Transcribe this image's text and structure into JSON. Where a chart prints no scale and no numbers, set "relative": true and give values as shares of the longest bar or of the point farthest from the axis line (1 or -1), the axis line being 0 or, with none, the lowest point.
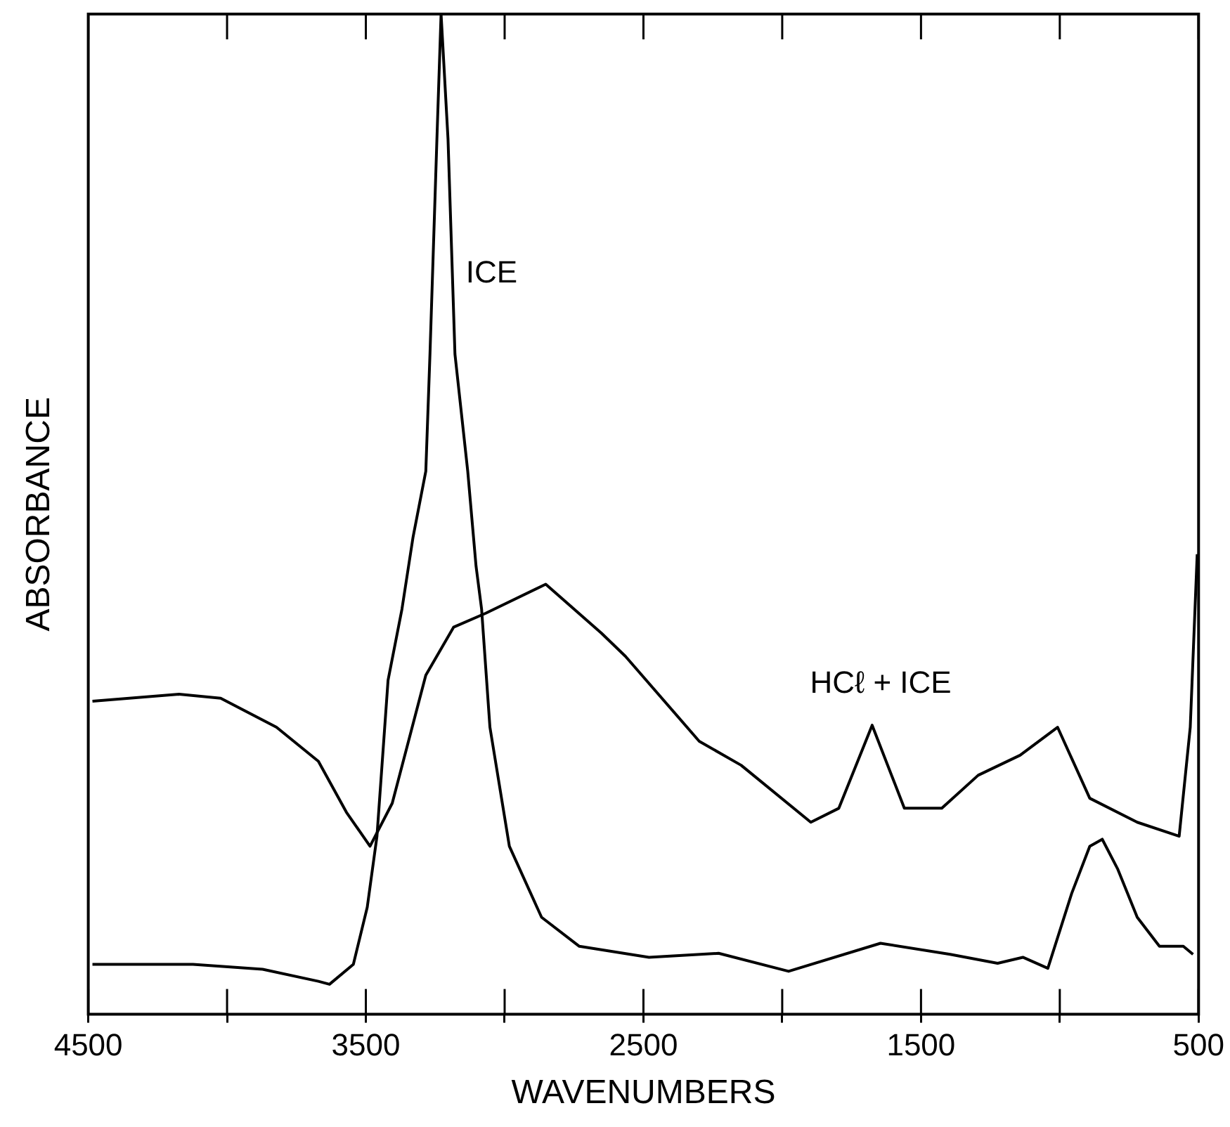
{
  "chart_data": {
    "type": "line",
    "xlabel": "WAVENUMBERS",
    "ylabel": "ABSORBANCE",
    "relative": true,
    "grid": false,
    "legend": false,
    "marker": "none",
    "line_style": "solid",
    "xlim": [
      4500,
      500
    ],
    "xticks": [
      4500,
      {
        "value": 4000,
        "label": null
      },
      3500,
      {
        "value": 3000,
        "label": null
      },
      2500,
      {
        "value": 2000,
        "label": null
      },
      1500,
      {
        "value": 1000,
        "label": null
      },
      500
    ],
    "series": [
      {
        "name": "ICE",
        "color": "#000000",
        "x": [
          4485,
          4123,
          3872,
          3671,
          3631,
          3545,
          3495,
          3460,
          3420,
          3370,
          3330,
          3284,
          3269,
          3244,
          3229,
          3204,
          3179,
          3133,
          3103,
          3083,
          3053,
          2983,
          2867,
          2731,
          2480,
          2229,
          1977,
          1646,
          1395,
          1224,
          1133,
          1043,
          957,
          892,
          847,
          791,
          721,
          641,
          555,
          520
        ],
        "values": [
          0.05,
          0.05,
          0.045,
          0.033,
          0.03,
          0.05,
          0.107,
          0.178,
          0.334,
          0.405,
          0.477,
          0.543,
          0.66,
          0.875,
          1,
          0.875,
          0.66,
          0.543,
          0.448,
          0.405,
          0.287,
          0.168,
          0.097,
          0.068,
          0.057,
          0.061,
          0.043,
          0.071,
          0.06,
          0.051,
          0.057,
          0.046,
          0.121,
          0.168,
          0.175,
          0.145,
          0.097,
          0.068,
          0.068,
          0.06
        ]
      },
      {
        "name": "HCℓ + ICE",
        "color": "#000000",
        "x": [
          4485,
          4173,
          4023,
          3822,
          3671,
          3570,
          3485,
          3405,
          3284,
          3184,
          3068,
          2852,
          2651,
          2565,
          2299,
          2148,
          1897,
          1796,
          1676,
          1560,
          1425,
          1294,
          1143,
          1008,
          892,
          721,
          570,
          530,
          505
        ],
        "values": [
          0.313,
          0.32,
          0.316,
          0.287,
          0.253,
          0.202,
          0.168,
          0.211,
          0.339,
          0.387,
          0.401,
          0.43,
          0.381,
          0.358,
          0.273,
          0.249,
          0.192,
          0.206,
          0.289,
          0.206,
          0.206,
          0.239,
          0.259,
          0.287,
          0.216,
          0.192,
          0.178,
          0.287,
          0.46
        ]
      }
    ]
  }
}
